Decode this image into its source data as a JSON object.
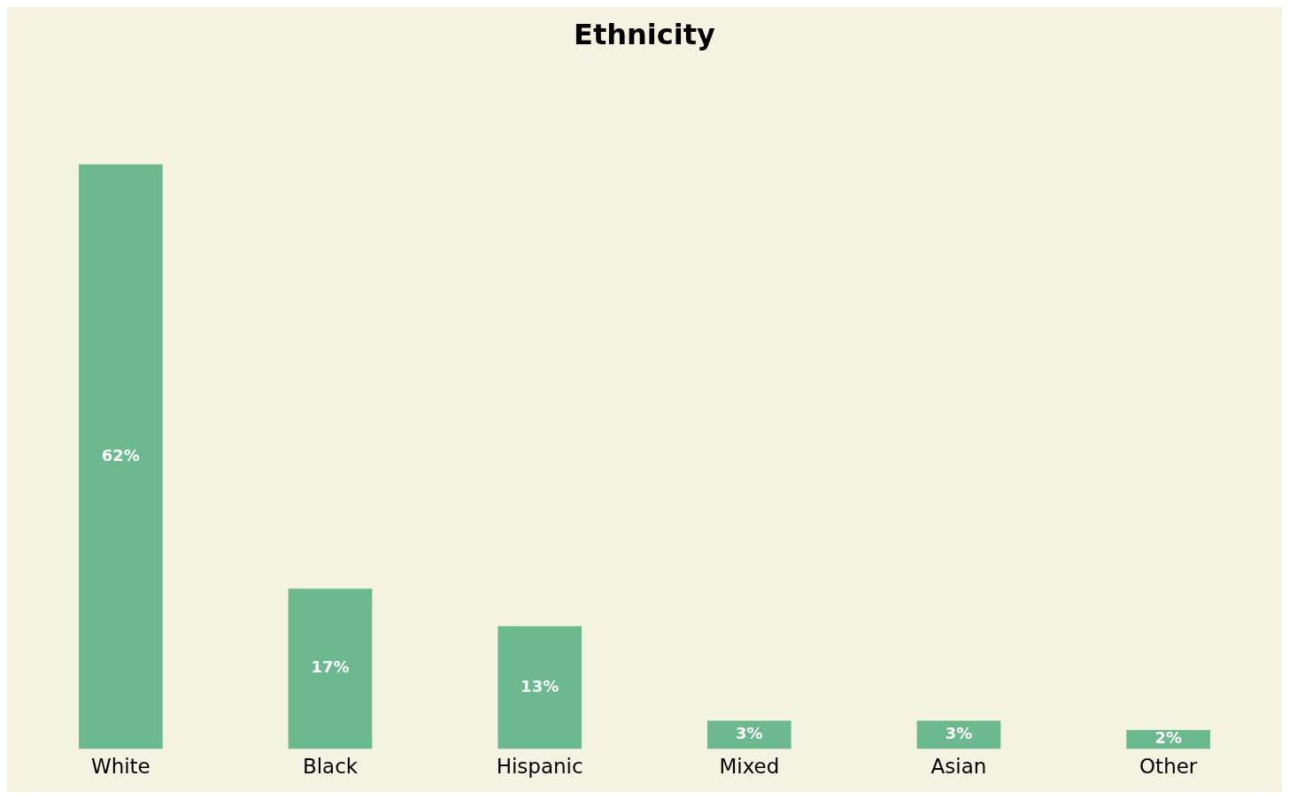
{
  "chart_data": {
    "type": "bar",
    "title": "Ethnicity",
    "categories": [
      "White",
      "Black",
      "Hispanic",
      "Mixed",
      "Asian",
      "Other"
    ],
    "values": [
      62,
      17,
      13,
      3,
      3,
      2
    ],
    "value_labels": [
      "62%",
      "17%",
      "13%",
      "3%",
      "3%",
      "2%"
    ],
    "color": "#6cb98f",
    "grid": false,
    "legend": false
  }
}
